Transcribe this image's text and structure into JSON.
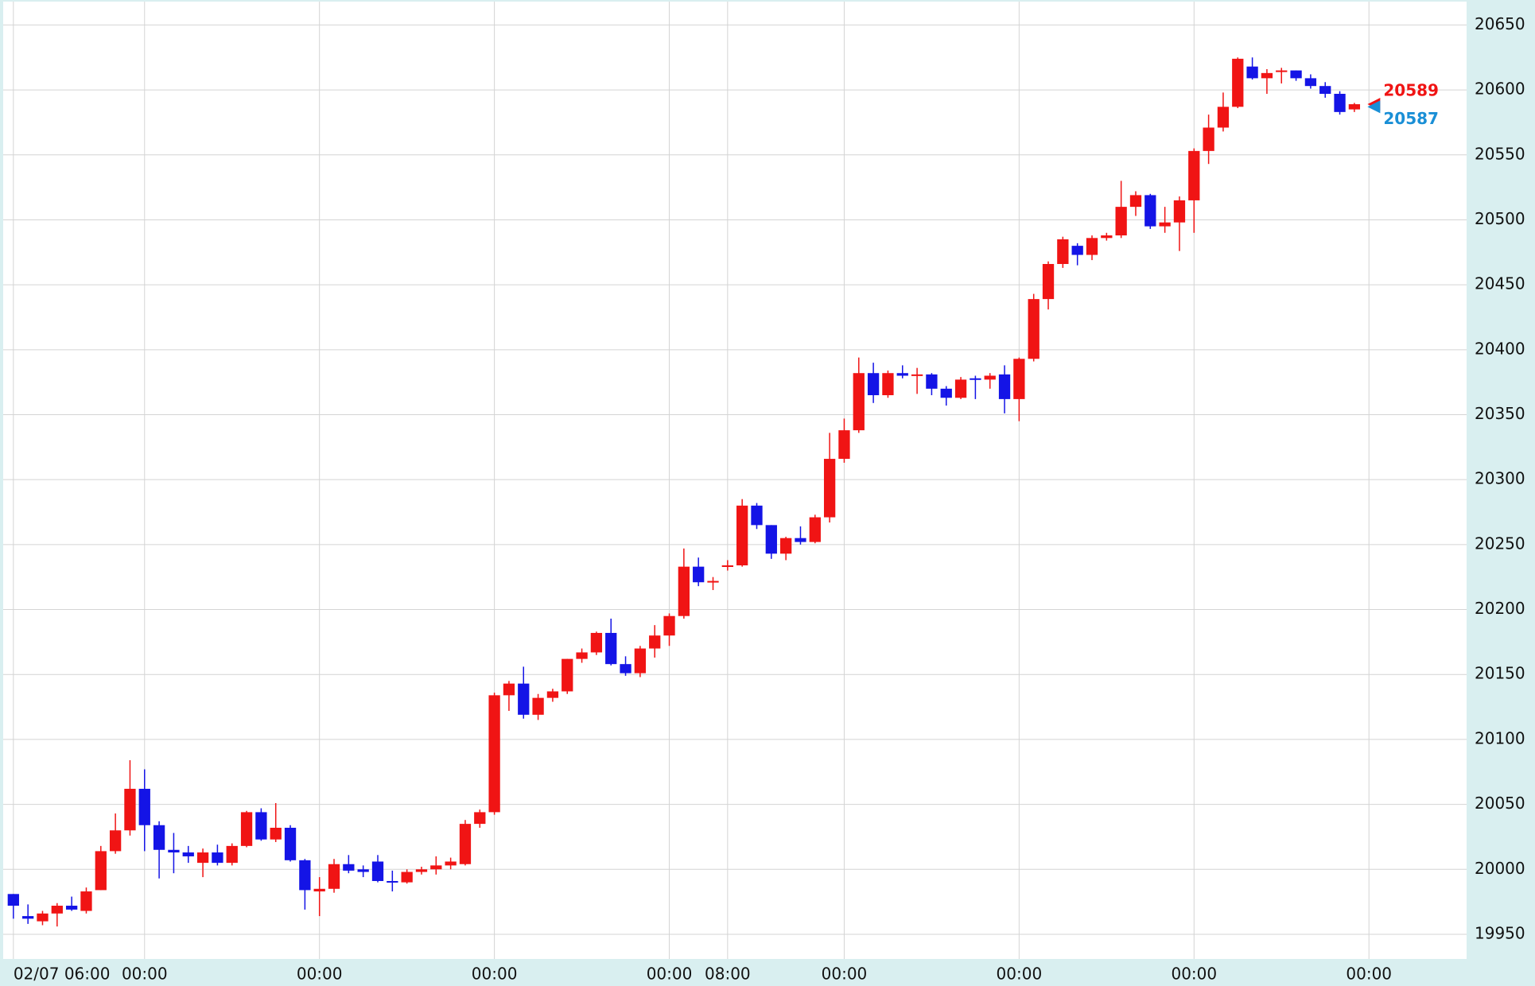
{
  "chart_data": {
    "type": "candlestick",
    "up_color": "#f01414",
    "down_color": "#1414e6",
    "ylim": [
      19931,
      20668
    ],
    "yticks": [
      19950,
      20000,
      20050,
      20100,
      20150,
      20200,
      20250,
      20300,
      20350,
      20400,
      20450,
      20500,
      20550,
      20600,
      20650
    ],
    "xlim": [
      -0.7,
      99.7
    ],
    "xticks": [
      {
        "value": 0,
        "label": "02/07 06:00"
      },
      {
        "value": 9,
        "label": "00:00"
      },
      {
        "value": 21,
        "label": "00:00"
      },
      {
        "value": 33,
        "label": "00:00"
      },
      {
        "value": 45,
        "label": "00:00"
      },
      {
        "value": 49,
        "label": "08:00"
      },
      {
        "value": 57,
        "label": "00:00"
      },
      {
        "value": 69,
        "label": "00:00"
      },
      {
        "value": 81,
        "label": "00:00"
      },
      {
        "value": 93,
        "label": "00:00"
      }
    ],
    "grid": true,
    "open": [
      19981,
      19964,
      19960,
      19966,
      19972,
      19968,
      19984,
      20014,
      20030,
      20062,
      20034,
      20015,
      20013,
      20005,
      20013,
      20005,
      20018,
      20044,
      20023,
      20032,
      20007,
      19983,
      19985,
      20004,
      20000,
      20006,
      19991,
      19990,
      19998,
      20000,
      20003,
      20004,
      20035,
      20044,
      20134,
      20143,
      20119,
      20132,
      20137,
      20162,
      20167,
      20182,
      20158,
      20151,
      20170,
      20180,
      20195,
      20233,
      20221,
      20233,
      20234,
      20280,
      20265,
      20243,
      20255,
      20252,
      20271,
      20316,
      20338,
      20382,
      20365,
      20382,
      20380,
      20381,
      20370,
      20363,
      20378,
      20377,
      20381,
      20362,
      20393,
      20439,
      20466,
      20480,
      20473,
      20486,
      20488,
      20510,
      20519,
      20495,
      20498,
      20515,
      20553,
      20571,
      20587,
      20618,
      20609,
      20614,
      20615,
      20609,
      20603,
      20597,
      20585
    ],
    "high": [
      19981,
      19973,
      19968,
      19974,
      19979,
      19986,
      20018,
      20043,
      20084,
      20077,
      20037,
      20028,
      20018,
      20016,
      20019,
      20020,
      20045,
      20047,
      20051,
      20034,
      20008,
      19994,
      20008,
      20011,
      20003,
      20011,
      19999,
      20000,
      20002,
      20010,
      20009,
      20038,
      20046,
      20136,
      20145,
      20156,
      20135,
      20139,
      20162,
      20170,
      20183,
      20193,
      20164,
      20172,
      20188,
      20197,
      20247,
      20240,
      20225,
      20238,
      20285,
      20282,
      20265,
      20256,
      20264,
      20273,
      20336,
      20347,
      20394,
      20390,
      20384,
      20388,
      20386,
      20382,
      20372,
      20379,
      20380,
      20382,
      20388,
      20394,
      20443,
      20468,
      20487,
      20482,
      20488,
      20490,
      20530,
      20522,
      20520,
      20510,
      20518,
      20555,
      20581,
      20598,
      20625,
      20625,
      20616,
      20617,
      20615,
      20612,
      20606,
      20599,
      20590
    ],
    "low": [
      19962,
      19958,
      19957,
      19956,
      19968,
      19966,
      19984,
      20012,
      20026,
      20014,
      19993,
      19997,
      20005,
      19994,
      20003,
      20003,
      20017,
      20022,
      20021,
      20006,
      19969,
      19964,
      19982,
      19997,
      19994,
      19990,
      19983,
      19989,
      19996,
      19996,
      20000,
      20003,
      20032,
      20042,
      20122,
      20116,
      20115,
      20129,
      20135,
      20159,
      20165,
      20157,
      20149,
      20148,
      20163,
      20172,
      20193,
      20218,
      20215,
      20230,
      20233,
      20262,
      20239,
      20238,
      20250,
      20251,
      20267,
      20313,
      20336,
      20359,
      20363,
      20378,
      20366,
      20365,
      20357,
      20362,
      20362,
      20370,
      20351,
      20345,
      20391,
      20431,
      20463,
      20465,
      20469,
      20484,
      20486,
      20503,
      20493,
      20490,
      20476,
      20490,
      20543,
      20568,
      20586,
      20608,
      20597,
      20605,
      20607,
      20601,
      20594,
      20581,
      20583
    ],
    "close": [
      19972,
      19962,
      19966,
      19972,
      19969,
      19983,
      20014,
      20030,
      20062,
      20034,
      20015,
      20013,
      20010,
      20013,
      20005,
      20018,
      20044,
      20023,
      20032,
      20007,
      19984,
      19985,
      20004,
      19999,
      19998,
      19991,
      19990,
      19998,
      20000,
      20003,
      20006,
      20035,
      20044,
      20134,
      20143,
      20119,
      20132,
      20137,
      20162,
      20167,
      20182,
      20158,
      20151,
      20170,
      20180,
      20195,
      20233,
      20221,
      20222,
      20234,
      20280,
      20265,
      20243,
      20255,
      20252,
      20271,
      20316,
      20338,
      20382,
      20365,
      20382,
      20380,
      20381,
      20370,
      20363,
      20377,
      20377,
      20380,
      20362,
      20393,
      20439,
      20466,
      20485,
      20473,
      20486,
      20488,
      20510,
      20519,
      20495,
      20498,
      20515,
      20553,
      20571,
      20587,
      20624,
      20609,
      20613,
      20615,
      20609,
      20603,
      20597,
      20583,
      20589
    ],
    "last_prices": [
      {
        "value": 20589,
        "color": "#f01414"
      },
      {
        "value": 20587,
        "color": "#1a8fd6"
      }
    ]
  }
}
